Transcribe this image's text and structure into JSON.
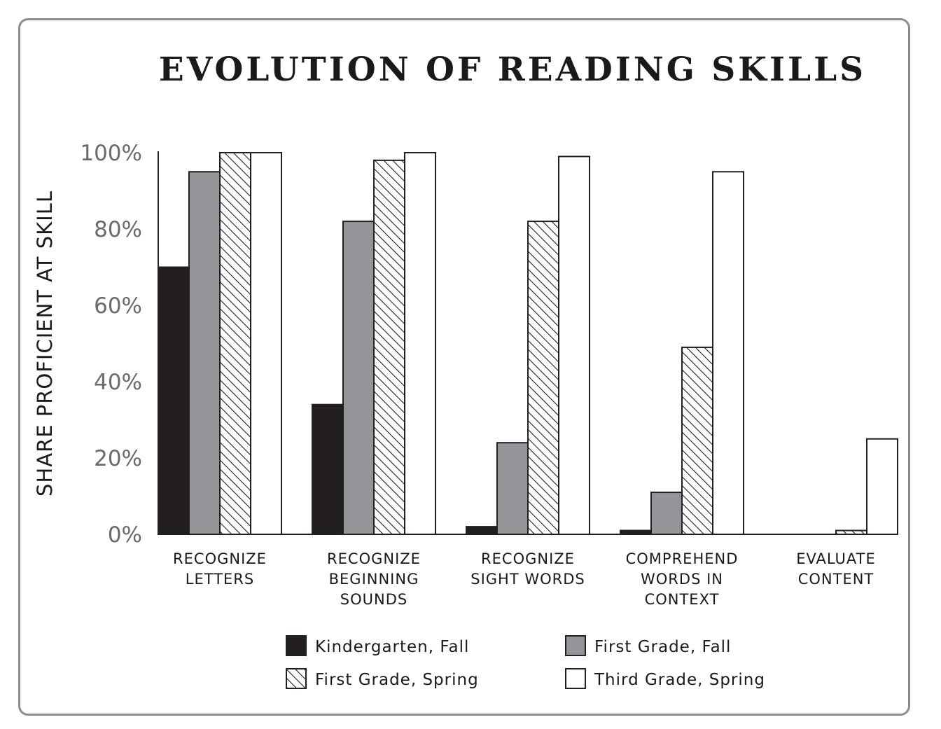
{
  "chart_data": {
    "type": "bar",
    "title": "EVOLUTION OF READING SKILLS",
    "ylabel": "SHARE PROFICIENT AT SKILL",
    "xlabel": "",
    "ylim": [
      0,
      100
    ],
    "yticks": [
      "0%",
      "20%",
      "40%",
      "60%",
      "80%",
      "100%"
    ],
    "ytick_values": [
      0,
      20,
      40,
      60,
      80,
      100
    ],
    "categories": [
      [
        "RECOGNIZE",
        "LETTERS"
      ],
      [
        "RECOGNIZE",
        "BEGINNING",
        "SOUNDS"
      ],
      [
        "RECOGNIZE",
        "SIGHT WORDS"
      ],
      [
        "COMPREHEND",
        "WORDS IN",
        "CONTEXT"
      ],
      [
        "EVALUATE",
        "CONTENT"
      ]
    ],
    "series": [
      {
        "name": "Kindergarten, Fall",
        "style": "solid",
        "color": "#231f20",
        "values": [
          70,
          34,
          2,
          1,
          0
        ]
      },
      {
        "name": "First Grade, Fall",
        "style": "solid",
        "color": "#939598",
        "values": [
          95,
          82,
          24,
          11,
          0
        ]
      },
      {
        "name": "First Grade, Spring",
        "style": "hatched",
        "color": "#ffffff",
        "values": [
          100,
          98,
          82,
          49,
          1
        ]
      },
      {
        "name": "Third Grade, Spring",
        "style": "solid",
        "color": "#ffffff",
        "values": [
          100,
          100,
          99,
          95,
          25
        ]
      }
    ],
    "legend_position": "bottom",
    "grid": false
  }
}
